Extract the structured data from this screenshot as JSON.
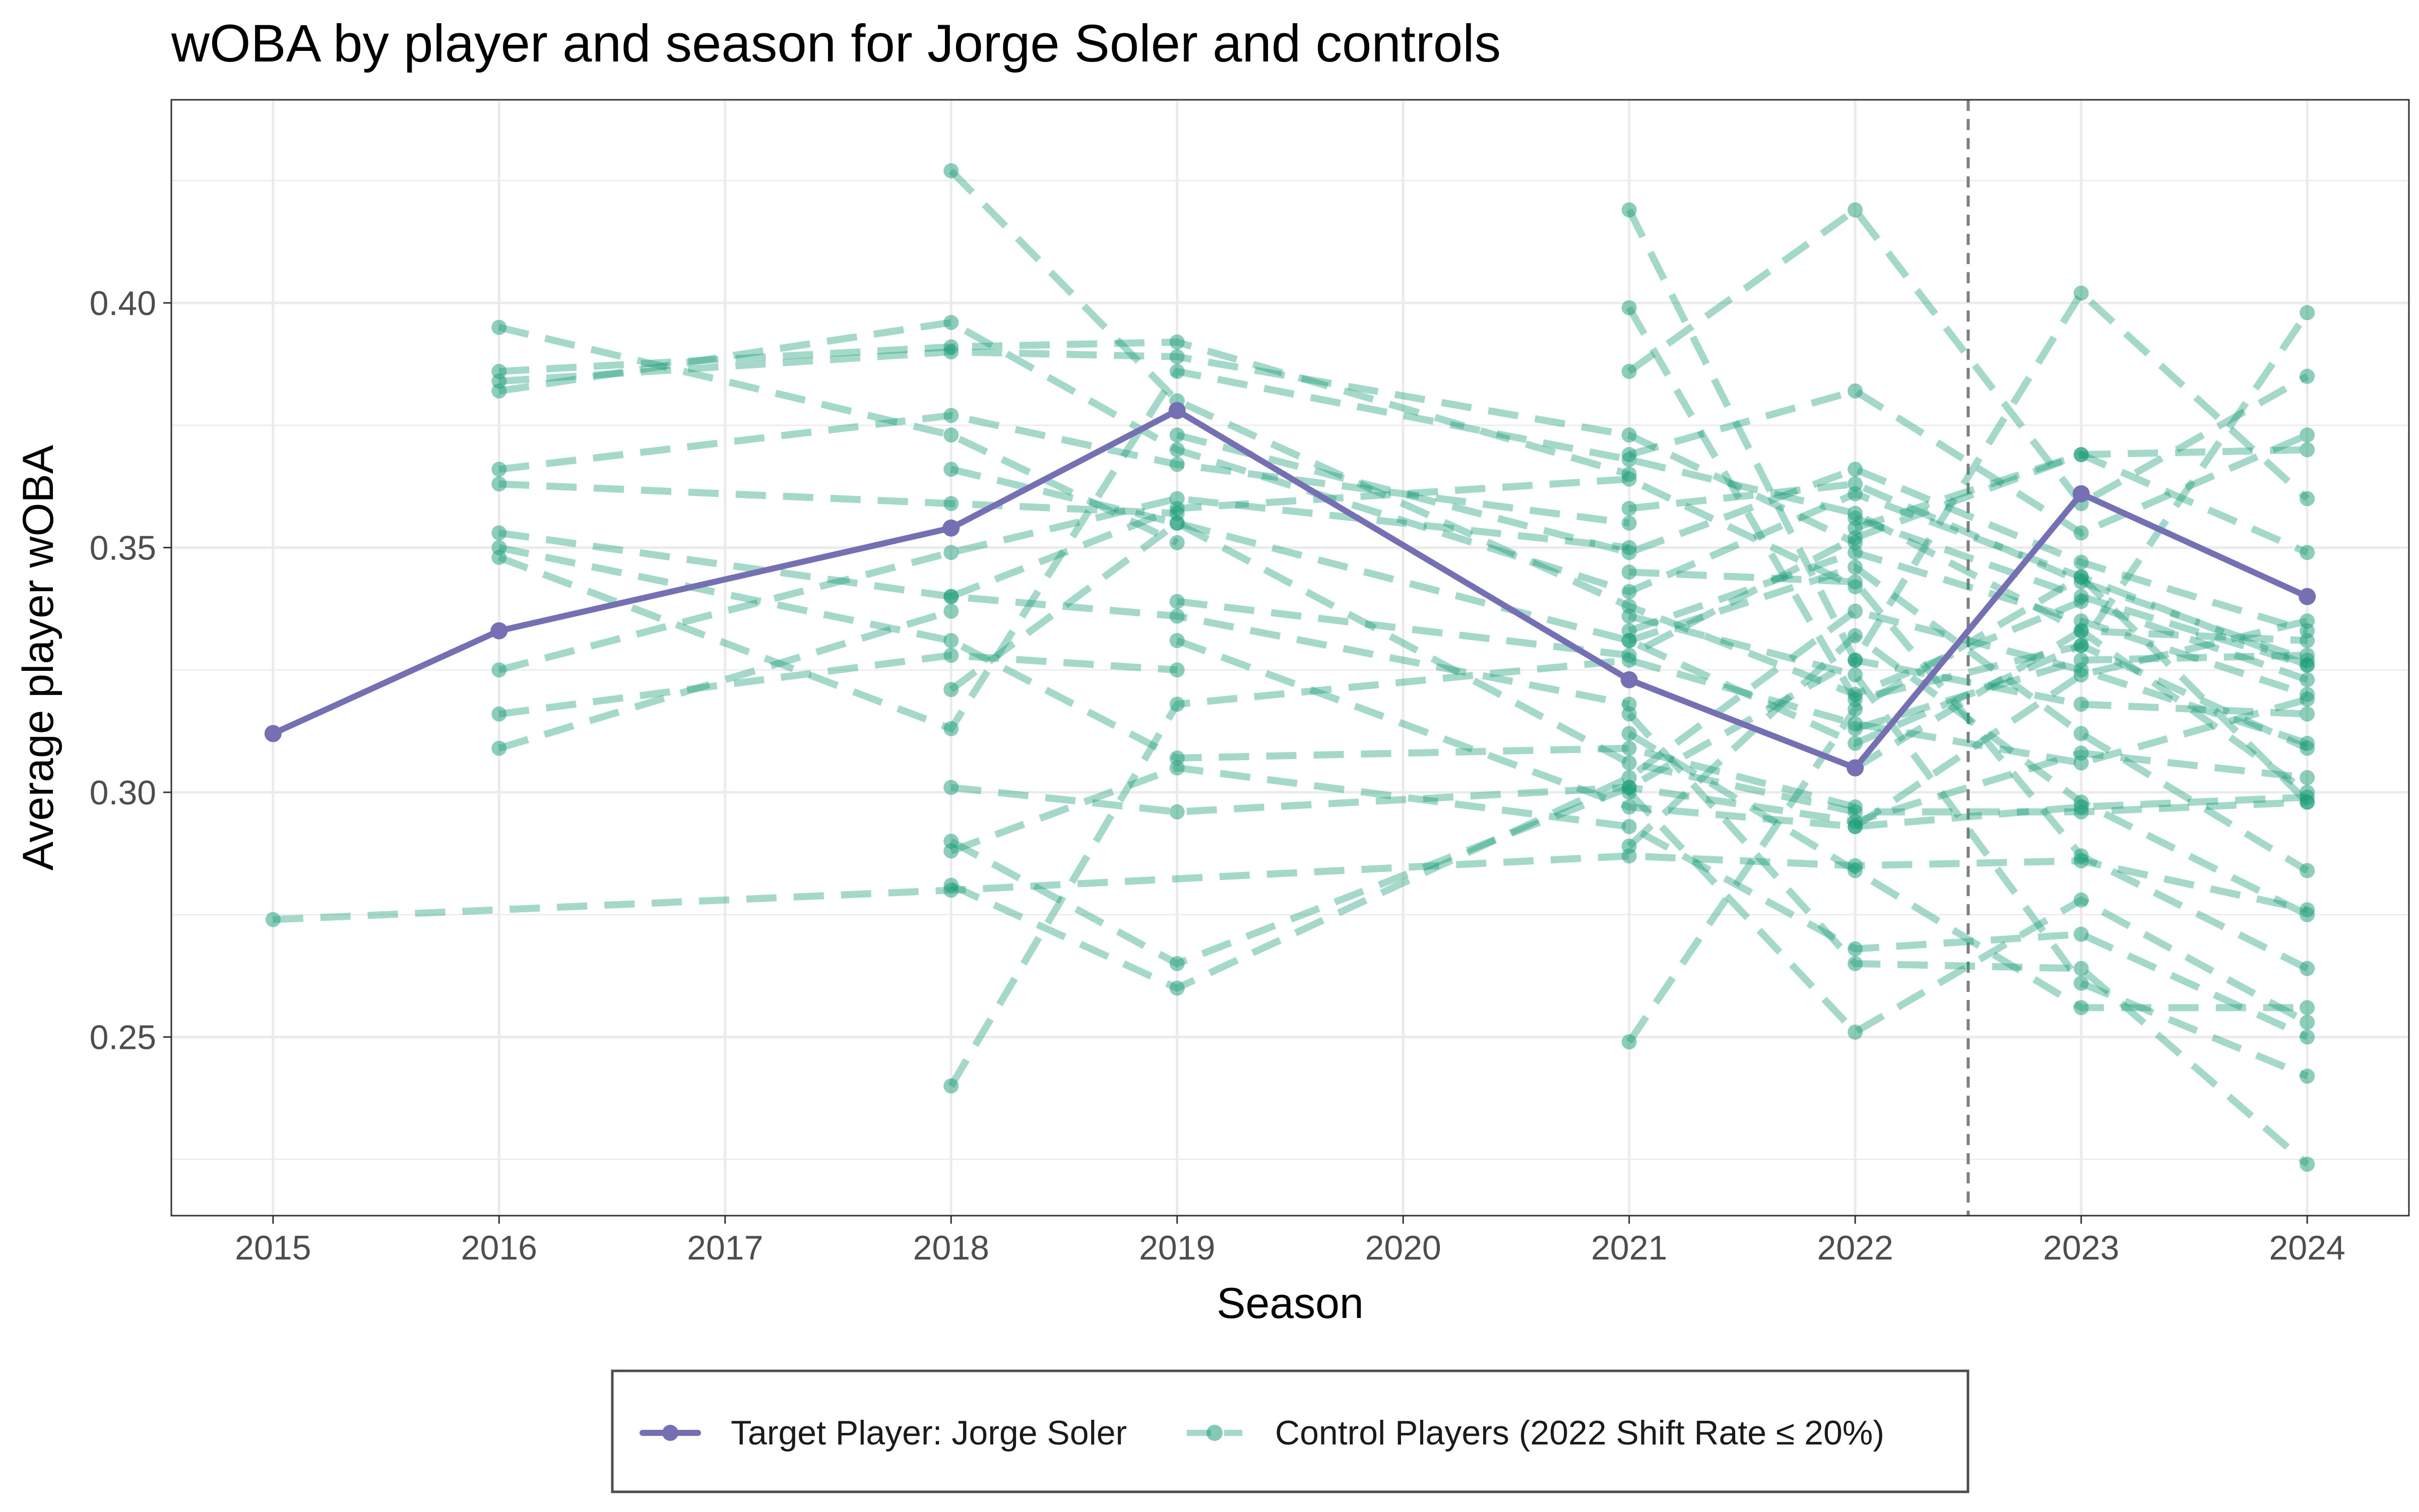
{
  "chart_data": {
    "type": "line",
    "title": "wOBA by player and season for Jorge Soler and controls",
    "xlabel": "Season",
    "ylabel": "Average player wOBA",
    "x_ticks": [
      2015,
      2016,
      2017,
      2018,
      2019,
      2020,
      2021,
      2022,
      2023,
      2024
    ],
    "y_ticks": [
      "0.25",
      "0.30",
      "0.35",
      "0.40"
    ],
    "xlim": [
      2014.55,
      2024.45
    ],
    "ylim": [
      0.2135,
      0.4415
    ],
    "grid": true,
    "vline_x": 2022.5,
    "legend_position": "bottom",
    "colors": {
      "target": "#7570b3",
      "control": "#1b9e77",
      "vline": "#7f7f7f"
    },
    "target": {
      "name": "Target Player: Jorge Soler",
      "x": [
        2015,
        2016,
        2018,
        2019,
        2021,
        2022,
        2023,
        2024
      ],
      "y": [
        0.312,
        0.333,
        0.354,
        0.378,
        0.323,
        0.305,
        0.361,
        0.34
      ]
    },
    "controls_name": "Control Players (2022 Shift Rate ≤ 20%)",
    "controls": [
      {
        "x": [
          2015,
          2018,
          2021,
          2022,
          2023,
          2024
        ],
        "y": [
          0.274,
          0.28,
          0.287,
          0.285,
          0.286,
          0.276
        ]
      },
      {
        "x": [
          2016,
          2018,
          2019
        ],
        "y": [
          0.395,
          0.373,
          0.351
        ]
      },
      {
        "x": [
          2016,
          2018,
          2019,
          2021
        ],
        "y": [
          0.386,
          0.391,
          0.392,
          0.365
        ]
      },
      {
        "x": [
          2016,
          2018,
          2019,
          2021,
          2022
        ],
        "y": [
          0.384,
          0.39,
          0.389,
          0.373,
          0.351
        ]
      },
      {
        "x": [
          2016,
          2018,
          2019,
          2021,
          2022,
          2023,
          2024
        ],
        "y": [
          0.382,
          0.396,
          0.37,
          0.341,
          0.361,
          0.344,
          0.326
        ]
      },
      {
        "x": [
          2016,
          2018,
          2019,
          2021
        ],
        "y": [
          0.366,
          0.377,
          0.367,
          0.355
        ]
      },
      {
        "x": [
          2016,
          2018,
          2019
        ],
        "y": [
          0.363,
          0.359,
          0.357
        ]
      },
      {
        "x": [
          2016,
          2018,
          2019,
          2021
        ],
        "y": [
          0.353,
          0.34,
          0.336,
          0.318
        ]
      },
      {
        "x": [
          2016,
          2018,
          2019,
          2021,
          2022
        ],
        "y": [
          0.35,
          0.331,
          0.307,
          0.309,
          0.297
        ]
      },
      {
        "x": [
          2016,
          2018,
          2019,
          2021,
          2022,
          2023,
          2024
        ],
        "y": [
          0.348,
          0.313,
          0.386,
          0.368,
          0.357,
          0.333,
          0.3
        ]
      },
      {
        "x": [
          2016,
          2018,
          2019,
          2021
        ],
        "y": [
          0.325,
          0.349,
          0.36,
          0.35
        ]
      },
      {
        "x": [
          2016,
          2018,
          2019
        ],
        "y": [
          0.316,
          0.328,
          0.325
        ]
      },
      {
        "x": [
          2016,
          2018
        ],
        "y": [
          0.309,
          0.337
        ]
      },
      {
        "x": [
          2018,
          2019,
          2021,
          2022,
          2023,
          2024
        ],
        "y": [
          0.427,
          0.38,
          0.338,
          0.32,
          0.339,
          0.323
        ]
      },
      {
        "x": [
          2018,
          2019,
          2021,
          2022,
          2023,
          2024
        ],
        "y": [
          0.366,
          0.355,
          0.306,
          0.296,
          0.296,
          0.298
        ]
      },
      {
        "x": [
          2018,
          2019,
          2021,
          2022
        ],
        "y": [
          0.34,
          0.358,
          0.364,
          0.342
        ]
      },
      {
        "x": [
          2018,
          2019,
          2021,
          2022,
          2023,
          2024
        ],
        "y": [
          0.321,
          0.355,
          0.331,
          0.31,
          0.33,
          0.309
        ]
      },
      {
        "x": [
          2018,
          2019,
          2021,
          2022,
          2023,
          2024
        ],
        "y": [
          0.301,
          0.296,
          0.301,
          0.294,
          0.308,
          0.303
        ]
      },
      {
        "x": [
          2018,
          2019,
          2021,
          2022,
          2023,
          2024
        ],
        "y": [
          0.29,
          0.265,
          0.301,
          0.327,
          0.318,
          0.316
        ]
      },
      {
        "x": [
          2018,
          2019,
          2021,
          2022,
          2023,
          2024
        ],
        "y": [
          0.288,
          0.305,
          0.293,
          0.268,
          0.271,
          0.25
        ]
      },
      {
        "x": [
          2018,
          2019,
          2021,
          2022,
          2023,
          2024
        ],
        "y": [
          0.281,
          0.26,
          0.303,
          0.337,
          0.325,
          0.31
        ]
      },
      {
        "x": [
          2018,
          2019,
          2021,
          2022,
          2023,
          2024
        ],
        "y": [
          0.24,
          0.318,
          0.327,
          0.314,
          0.306,
          0.319
        ]
      },
      {
        "x": [
          2019,
          2021,
          2022,
          2023,
          2024
        ],
        "y": [
          0.373,
          0.349,
          0.366,
          0.347,
          0.333
        ]
      },
      {
        "x": [
          2019,
          2021,
          2022,
          2023,
          2024
        ],
        "y": [
          0.339,
          0.328,
          0.352,
          0.369,
          0.349
        ]
      },
      {
        "x": [
          2019,
          2021,
          2022,
          2023,
          2024
        ],
        "y": [
          0.331,
          0.297,
          0.293,
          0.297,
          0.299
        ]
      },
      {
        "x": [
          2021,
          2022,
          2023,
          2024
        ],
        "y": [
          0.419,
          0.327,
          0.402,
          0.36
        ]
      },
      {
        "x": [
          2021,
          2022,
          2023,
          2024
        ],
        "y": [
          0.399,
          0.319,
          0.33,
          0.398
        ]
      },
      {
        "x": [
          2021,
          2022,
          2023,
          2024
        ],
        "y": [
          0.386,
          0.419,
          0.359,
          0.385
        ]
      },
      {
        "x": [
          2021,
          2022,
          2023,
          2024
        ],
        "y": [
          0.369,
          0.382,
          0.353,
          0.373
        ]
      },
      {
        "x": [
          2021,
          2022,
          2023,
          2024
        ],
        "y": [
          0.358,
          0.363,
          0.343,
          0.327
        ]
      },
      {
        "x": [
          2021,
          2022,
          2023,
          2024
        ],
        "y": [
          0.345,
          0.343,
          0.287,
          0.264
        ]
      },
      {
        "x": [
          2021,
          2022,
          2023,
          2024
        ],
        "y": [
          0.336,
          0.324,
          0.261,
          0.242
        ]
      },
      {
        "x": [
          2021,
          2022,
          2023,
          2024
        ],
        "y": [
          0.333,
          0.349,
          0.335,
          0.32
        ]
      },
      {
        "x": [
          2021,
          2022,
          2023,
          2024
        ],
        "y": [
          0.331,
          0.346,
          0.312,
          0.284
        ]
      },
      {
        "x": [
          2021,
          2022,
          2023,
          2024
        ],
        "y": [
          0.316,
          0.265,
          0.264,
          0.224
        ]
      },
      {
        "x": [
          2021,
          2022,
          2023,
          2024
        ],
        "y": [
          0.312,
          0.284,
          0.256,
          0.256
        ]
      },
      {
        "x": [
          2021,
          2022,
          2023,
          2024
        ],
        "y": [
          0.3,
          0.251,
          0.278,
          0.253
        ]
      },
      {
        "x": [
          2021,
          2022,
          2023,
          2024
        ],
        "y": [
          0.289,
          0.332,
          0.298,
          0.275
        ]
      },
      {
        "x": [
          2021,
          2022,
          2023,
          2024
        ],
        "y": [
          0.249,
          0.317,
          0.344,
          0.298
        ]
      },
      {
        "x": [
          2022,
          2023,
          2024
        ],
        "y": [
          0.354,
          0.369,
          0.37
        ]
      },
      {
        "x": [
          2022,
          2023,
          2024
        ],
        "y": [
          0.305,
          0.333,
          0.331
        ]
      },
      {
        "x": [
          2022,
          2023,
          2024
        ],
        "y": [
          0.313,
          0.327,
          0.328
        ]
      },
      {
        "x": [
          2022,
          2023,
          2024
        ],
        "y": [
          0.293,
          0.324,
          0.335
        ]
      },
      {
        "x": [
          2022,
          2023,
          2024
        ],
        "y": [
          0.356,
          0.34,
          0.326
        ]
      }
    ]
  }
}
